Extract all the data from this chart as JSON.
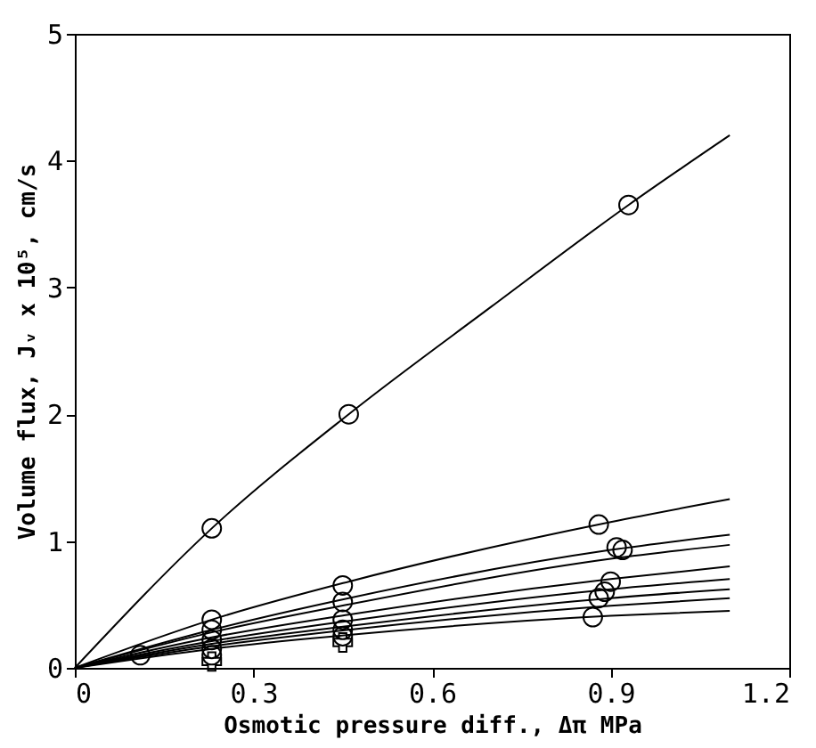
{
  "chart_data": {
    "type": "line",
    "xlabel": "Osmotic pressure diff., Δπ  MPa",
    "ylabel": "Volume flux, Jᵥ x 10⁵, cm/s",
    "xlim": [
      0,
      1.2
    ],
    "xticks": [
      0,
      0.3,
      0.6,
      0.9,
      1.2
    ],
    "ylim": [
      0,
      5
    ],
    "yticks": [
      0,
      1,
      2,
      3,
      4,
      5
    ],
    "grid": false,
    "series": [
      {
        "color": "#000000",
        "marker": "none",
        "x": [
          0,
          0.23,
          0.46,
          0.7,
          0.93,
          1.1
        ],
        "values": [
          0,
          1.1,
          2.0,
          2.85,
          3.65,
          4.2
        ]
      },
      {
        "type": "line",
        "color": "#000000",
        "marker": "none",
        "x": [
          0,
          0.23,
          0.46,
          0.9,
          1.1
        ],
        "values": [
          0,
          0.38,
          0.68,
          1.15,
          1.33
        ]
      },
      {
        "type": "line",
        "color": "#000000",
        "marker": "none",
        "x": [
          0,
          0.23,
          0.46,
          0.9,
          1.1
        ],
        "values": [
          0,
          0.3,
          0.55,
          0.93,
          1.05
        ]
      },
      {
        "type": "line",
        "color": "#000000",
        "marker": "none",
        "x": [
          0,
          0.23,
          0.46,
          0.9,
          1.1
        ],
        "values": [
          0,
          0.28,
          0.5,
          0.86,
          0.97
        ]
      },
      {
        "type": "line",
        "color": "#000000",
        "marker": "none",
        "x": [
          0,
          0.23,
          0.46,
          0.9,
          1.1
        ],
        "values": [
          0,
          0.24,
          0.42,
          0.7,
          0.8
        ]
      },
      {
        "type": "line",
        "color": "#000000",
        "marker": "none",
        "x": [
          0,
          0.23,
          0.46,
          0.9,
          1.1
        ],
        "values": [
          0,
          0.21,
          0.37,
          0.62,
          0.7
        ]
      },
      {
        "type": "line",
        "color": "#000000",
        "marker": "none",
        "x": [
          0,
          0.23,
          0.46,
          0.9,
          1.1
        ],
        "values": [
          0,
          0.19,
          0.33,
          0.55,
          0.62
        ]
      },
      {
        "type": "line",
        "color": "#000000",
        "marker": "none",
        "x": [
          0,
          0.23,
          0.46,
          0.9,
          1.1
        ],
        "values": [
          0,
          0.17,
          0.3,
          0.49,
          0.55
        ]
      },
      {
        "type": "line",
        "color": "#000000",
        "marker": "none",
        "x": [
          0,
          0.23,
          0.46,
          0.9,
          1.1
        ],
        "values": [
          0,
          0.15,
          0.26,
          0.41,
          0.45
        ]
      },
      {
        "type": "scatter",
        "color": "#000000",
        "marker": "circle",
        "x": [
          0.11,
          0.23,
          0.46,
          0.93,
          0.23,
          0.23,
          0.23,
          0.23,
          0.23,
          0.45,
          0.45,
          0.45,
          0.45,
          0.45,
          0.88,
          0.91,
          0.92,
          0.9,
          0.89,
          0.88,
          0.87
        ],
        "values": [
          0.1,
          1.1,
          2.0,
          3.65,
          0.38,
          0.3,
          0.22,
          0.15,
          0.1,
          0.65,
          0.52,
          0.38,
          0.3,
          0.25,
          1.13,
          0.95,
          0.93,
          0.68,
          0.6,
          0.55,
          0.4
        ]
      },
      {
        "type": "scatter",
        "color": "#000000",
        "marker": "cross",
        "x": [
          0.23,
          0.45
        ],
        "values": [
          0.05,
          0.2
        ]
      }
    ]
  }
}
